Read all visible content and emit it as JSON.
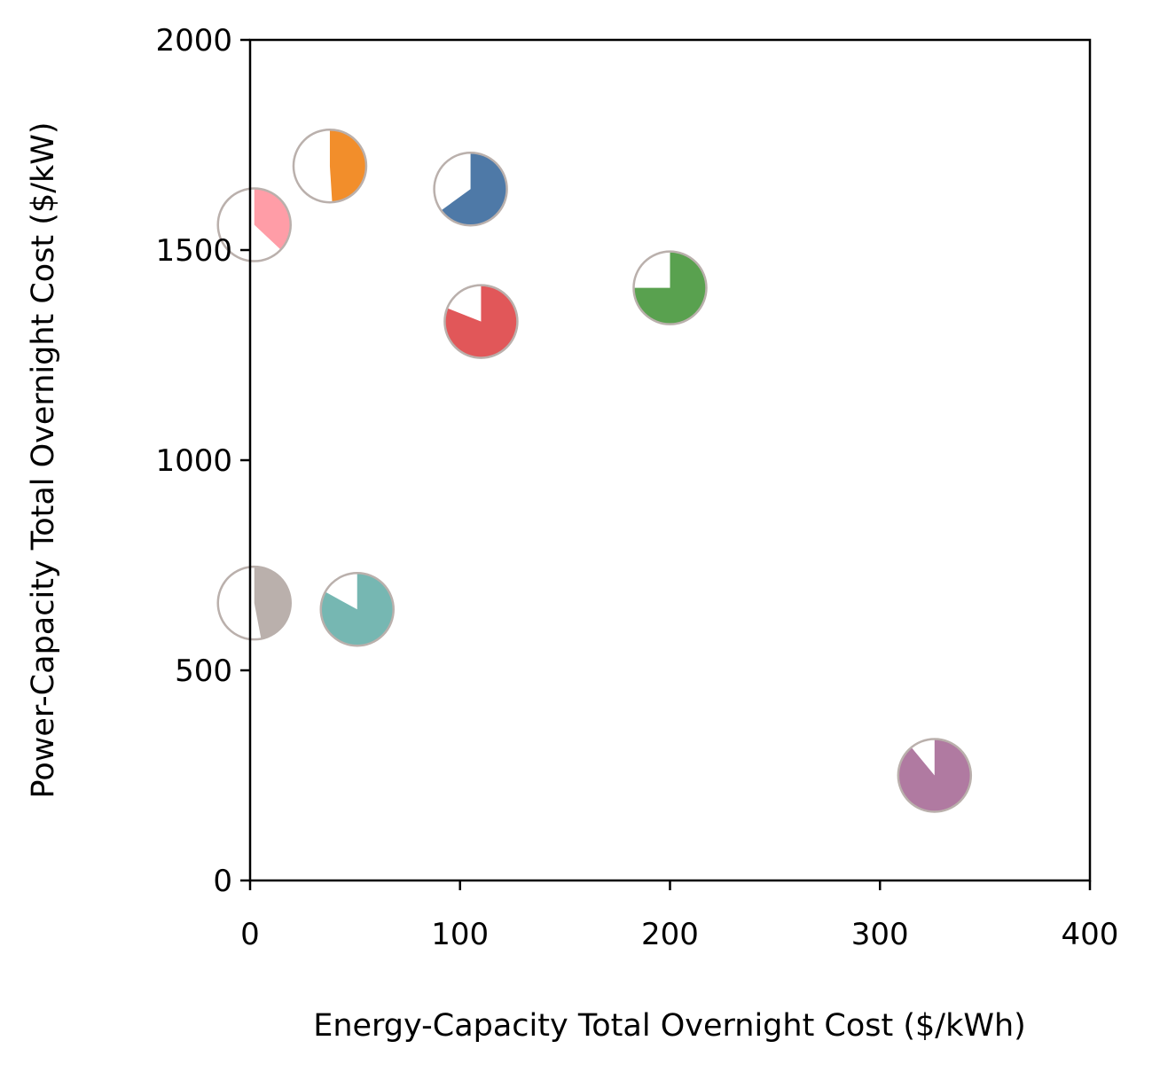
{
  "chart_data": {
    "type": "scatter",
    "title": "",
    "xlabel": "Energy-Capacity Total Overnight Cost ($/kWh)",
    "ylabel": "Power-Capacity Total Overnight Cost ($/kW)",
    "xlim": [
      0,
      400
    ],
    "ylim": [
      0,
      2000
    ],
    "xticks": [
      "0",
      "100",
      "200",
      "300",
      "400"
    ],
    "yticks": [
      "0",
      "500",
      "1000",
      "1500",
      "2000"
    ],
    "grid": false,
    "legend": "none",
    "marker_style": "pie",
    "marker_edge_color": "#bab0ac",
    "points": [
      {
        "x": 2,
        "y": 1560,
        "fraction": 0.37,
        "color": "#ff9da7"
      },
      {
        "x": 38,
        "y": 1700,
        "fraction": 0.49,
        "color": "#f28e2b"
      },
      {
        "x": 105,
        "y": 1645,
        "fraction": 0.65,
        "color": "#4e79a7"
      },
      {
        "x": 110,
        "y": 1330,
        "fraction": 0.81,
        "color": "#e15759"
      },
      {
        "x": 200,
        "y": 1410,
        "fraction": 0.75,
        "color": "#59a14f"
      },
      {
        "x": 2,
        "y": 660,
        "fraction": 0.47,
        "color": "#bab0ac"
      },
      {
        "x": 51,
        "y": 645,
        "fraction": 0.83,
        "color": "#76b7b2"
      },
      {
        "x": 326,
        "y": 250,
        "fraction": 0.89,
        "color": "#b07aa1"
      }
    ]
  }
}
